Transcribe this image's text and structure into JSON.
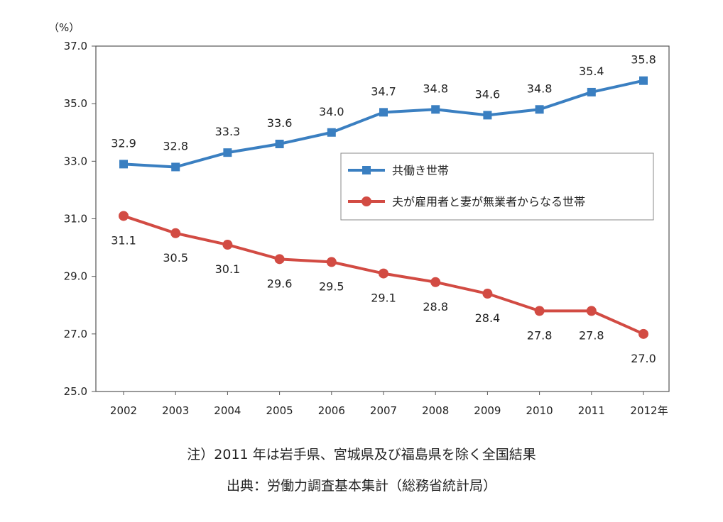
{
  "chart_data": {
    "type": "line",
    "ylabel": "（%）",
    "x": [
      "2002",
      "2003",
      "2004",
      "2005",
      "2006",
      "2007",
      "2008",
      "2009",
      "2010",
      "2011",
      "2012"
    ],
    "x_tick_labels": [
      "2002",
      "2003",
      "2004",
      "2005",
      "2006",
      "2007",
      "2008",
      "2009",
      "2010",
      "2011",
      "2012年"
    ],
    "y_ticks": [
      "25.0",
      "27.0",
      "29.0",
      "31.0",
      "33.0",
      "35.0",
      "37.0"
    ],
    "ylim": [
      25.0,
      37.0
    ],
    "grid": false,
    "legend_position": "center-right",
    "series": [
      {
        "name": "共働き世帯",
        "color": "#3a7fc1",
        "marker": "square",
        "values": [
          32.9,
          32.8,
          33.3,
          33.6,
          34.0,
          34.7,
          34.8,
          34.6,
          34.8,
          35.4,
          35.8
        ],
        "labels": [
          "32.9",
          "32.8",
          "33.3",
          "33.6",
          "34.0",
          "34.7",
          "34.8",
          "34.6",
          "34.8",
          "35.4",
          "35.8"
        ]
      },
      {
        "name": "夫が雇用者と妻が無業者からなる世帯",
        "color": "#d24b43",
        "marker": "circle",
        "values": [
          31.1,
          30.5,
          30.1,
          29.6,
          29.5,
          29.1,
          28.8,
          28.4,
          27.8,
          27.8,
          27.0
        ],
        "labels": [
          "31.1",
          "30.5",
          "30.1",
          "29.6",
          "29.5",
          "29.1",
          "28.8",
          "28.4",
          "27.8",
          "27.8",
          "27.0"
        ]
      }
    ]
  },
  "notes": {
    "note": "注）2011 年は岩手県、宮城県及び福島県を除く全国結果",
    "source": "出典：労働力調査基本集計（総務省統計局）"
  }
}
